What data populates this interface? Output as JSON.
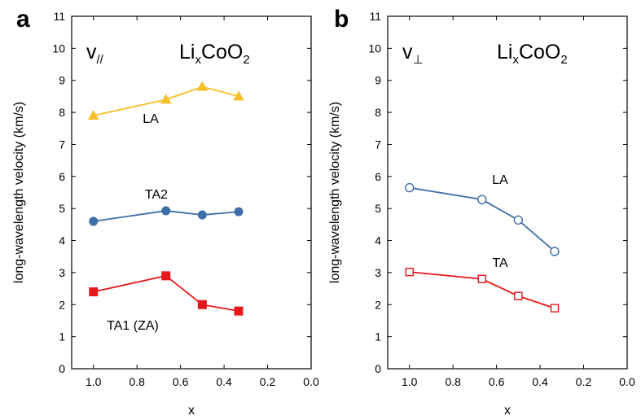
{
  "chart_data": [
    {
      "type": "line",
      "panel_label": "a",
      "velocity_symbol": "v",
      "velocity_subscript": "//",
      "compound": {
        "base": "Li",
        "sub1": "x",
        "mid": "CoO",
        "sub2": "2"
      },
      "xlabel": "x",
      "ylabel": "long-wavelength velocity (km/s)",
      "xlim": [
        1.1,
        0.0
      ],
      "ylim": [
        0,
        11
      ],
      "xticks": [
        "1.0",
        "0.8",
        "0.6",
        "0.4",
        "0.2",
        "0.0"
      ],
      "yticks": [
        "0",
        "1",
        "2",
        "3",
        "4",
        "5",
        "6",
        "7",
        "8",
        "9",
        "10",
        "11"
      ],
      "series": [
        {
          "name": "LA",
          "color": "#f5c02a",
          "marker": "triangle-filled",
          "x": [
            1.0,
            0.667,
            0.5,
            0.333
          ],
          "y": [
            7.9,
            8.4,
            8.8,
            8.5
          ]
        },
        {
          "name": "TA2",
          "color": "#3e6ea8",
          "marker": "circle-filled",
          "x": [
            1.0,
            0.667,
            0.5,
            0.333
          ],
          "y": [
            4.6,
            4.93,
            4.8,
            4.9
          ]
        },
        {
          "name": "TA1 (ZA)",
          "color": "#e8191b",
          "marker": "square-filled",
          "x": [
            1.0,
            0.667,
            0.5,
            0.333
          ],
          "y": [
            2.4,
            2.9,
            2.0,
            1.8
          ]
        }
      ]
    },
    {
      "type": "line",
      "panel_label": "b",
      "velocity_symbol": "v",
      "velocity_subscript": "⊥",
      "compound": {
        "base": "Li",
        "sub1": "x",
        "mid": "CoO",
        "sub2": "2"
      },
      "xlabel": "x",
      "ylabel": "long-wavelength velocity (km/s)",
      "xlim": [
        1.1,
        0.0
      ],
      "ylim": [
        0,
        11
      ],
      "xticks": [
        "1.0",
        "0.8",
        "0.6",
        "0.4",
        "0.2",
        "0.0"
      ],
      "yticks": [
        "0",
        "1",
        "2",
        "3",
        "4",
        "5",
        "6",
        "7",
        "8",
        "9",
        "10",
        "11"
      ],
      "series": [
        {
          "name": "LA",
          "color": "#3e6ea8",
          "marker": "circle-open",
          "x": [
            1.0,
            0.667,
            0.5,
            0.333
          ],
          "y": [
            5.65,
            5.28,
            4.64,
            3.66
          ]
        },
        {
          "name": "TA",
          "color": "#e8191b",
          "marker": "square-open",
          "x": [
            1.0,
            0.667,
            0.5,
            0.333
          ],
          "y": [
            3.02,
            2.8,
            2.27,
            1.89
          ]
        }
      ]
    }
  ]
}
